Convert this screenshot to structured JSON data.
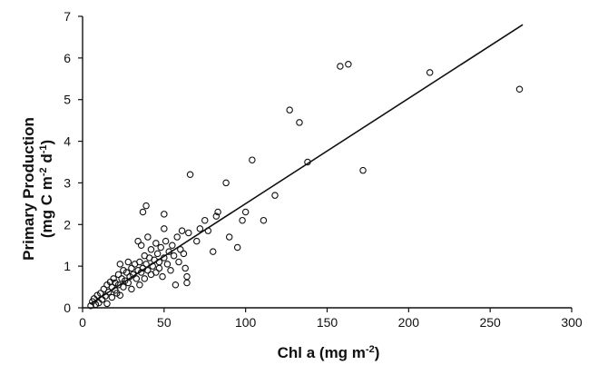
{
  "chart_data": {
    "type": "scatter",
    "title": "",
    "xlabel": "Chl a (mg m",
    "xlabel_sup": "-2",
    "xlabel_end": ")",
    "ylabel_line1": "Primary Production",
    "ylabel_line2_a": "(mg C m",
    "ylabel_line2_sup1": "-2",
    "ylabel_line2_b": " d",
    "ylabel_line2_sup2": "-1",
    "ylabel_line2_c": ")",
    "xlim": [
      0,
      300
    ],
    "ylim": [
      0,
      7
    ],
    "xticks": [
      0,
      50,
      100,
      150,
      200,
      250,
      300
    ],
    "yticks": [
      0,
      1,
      2,
      3,
      4,
      5,
      6,
      7
    ],
    "grid": false,
    "legend": "none",
    "fit_line": {
      "x": [
        5,
        270
      ],
      "y": [
        0.1,
        6.8
      ]
    },
    "series": [
      {
        "points": [
          [
            5,
            0.05
          ],
          [
            6,
            0.15
          ],
          [
            7,
            0.22
          ],
          [
            8,
            0.08
          ],
          [
            9,
            0.3
          ],
          [
            10,
            0.12
          ],
          [
            11,
            0.35
          ],
          [
            12,
            0.2
          ],
          [
            13,
            0.45
          ],
          [
            14,
            0.28
          ],
          [
            15,
            0.55
          ],
          [
            15,
            0.1
          ],
          [
            16,
            0.38
          ],
          [
            17,
            0.62
          ],
          [
            18,
            0.5
          ],
          [
            18,
            0.25
          ],
          [
            19,
            0.7
          ],
          [
            20,
            0.42
          ],
          [
            20,
            0.6
          ],
          [
            21,
            0.35
          ],
          [
            22,
            0.8
          ],
          [
            22,
            0.55
          ],
          [
            23,
            1.05
          ],
          [
            23,
            0.3
          ],
          [
            24,
            0.7
          ],
          [
            25,
            0.9
          ],
          [
            25,
            0.5
          ],
          [
            26,
            0.65
          ],
          [
            27,
            0.85
          ],
          [
            28,
            0.6
          ],
          [
            28,
            1.1
          ],
          [
            29,
            0.75
          ],
          [
            30,
            0.95
          ],
          [
            30,
            0.45
          ],
          [
            31,
            0.8
          ],
          [
            32,
            1.05
          ],
          [
            33,
            0.7
          ],
          [
            34,
            1.6
          ],
          [
            34,
            0.9
          ],
          [
            35,
            1.1
          ],
          [
            35,
            0.55
          ],
          [
            36,
            0.85
          ],
          [
            36,
            1.5
          ],
          [
            37,
            2.3
          ],
          [
            37,
            0.95
          ],
          [
            38,
            1.25
          ],
          [
            38,
            0.7
          ],
          [
            39,
            2.45
          ],
          [
            39,
            1.05
          ],
          [
            40,
            0.9
          ],
          [
            40,
            1.7
          ],
          [
            41,
            1.2
          ],
          [
            42,
            0.8
          ],
          [
            42,
            1.4
          ],
          [
            43,
            1.0
          ],
          [
            44,
            1.15
          ],
          [
            45,
            0.85
          ],
          [
            45,
            1.55
          ],
          [
            46,
            1.3
          ],
          [
            47,
            0.95
          ],
          [
            47,
            1.1
          ],
          [
            48,
            1.45
          ],
          [
            49,
            0.75
          ],
          [
            50,
            1.2
          ],
          [
            50,
            1.9
          ],
          [
            50,
            2.25
          ],
          [
            51,
            1.6
          ],
          [
            52,
            1.05
          ],
          [
            53,
            1.35
          ],
          [
            54,
            0.9
          ],
          [
            55,
            1.5
          ],
          [
            56,
            1.25
          ],
          [
            57,
            0.55
          ],
          [
            58,
            1.7
          ],
          [
            59,
            1.1
          ],
          [
            60,
            1.4
          ],
          [
            61,
            1.85
          ],
          [
            62,
            1.3
          ],
          [
            63,
            0.95
          ],
          [
            64,
            0.75
          ],
          [
            64,
            0.6
          ],
          [
            65,
            1.8
          ],
          [
            66,
            3.2
          ],
          [
            70,
            1.6
          ],
          [
            72,
            1.9
          ],
          [
            75,
            2.1
          ],
          [
            77,
            1.85
          ],
          [
            80,
            1.35
          ],
          [
            82,
            2.2
          ],
          [
            83,
            2.3
          ],
          [
            88,
            3.0
          ],
          [
            90,
            1.7
          ],
          [
            95,
            1.45
          ],
          [
            98,
            2.1
          ],
          [
            100,
            2.3
          ],
          [
            104,
            3.55
          ],
          [
            111,
            2.1
          ],
          [
            118,
            2.7
          ],
          [
            127,
            4.75
          ],
          [
            133,
            4.45
          ],
          [
            138,
            3.5
          ],
          [
            158,
            5.8
          ],
          [
            163,
            5.85
          ],
          [
            172,
            3.3
          ],
          [
            213,
            5.65
          ],
          [
            268,
            5.25
          ]
        ]
      }
    ]
  }
}
